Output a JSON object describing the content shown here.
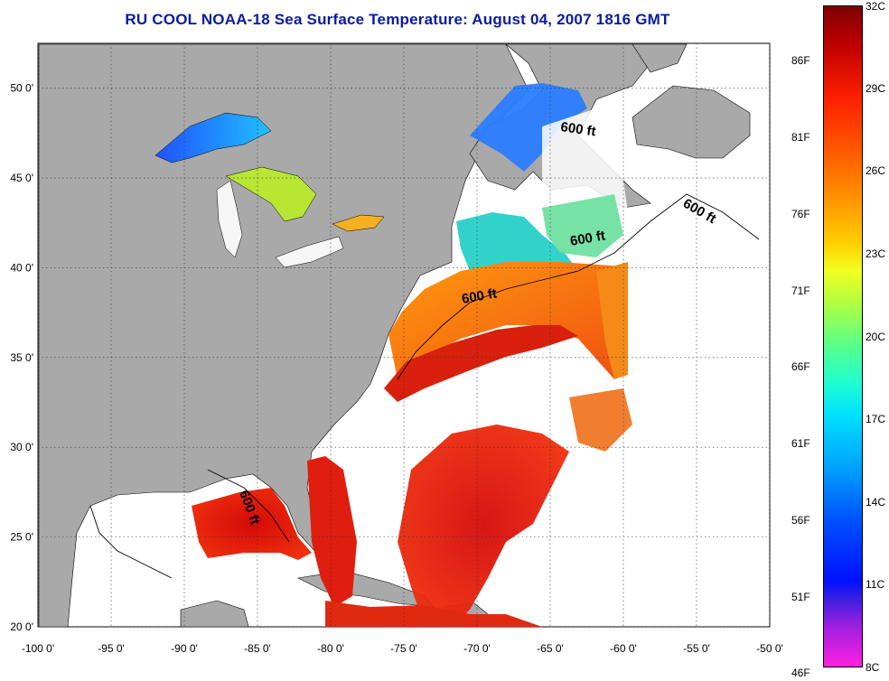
{
  "title": "RU COOL  NOAA-18  Sea Surface Temperature:  August 04, 2007 1816 GMT",
  "map": {
    "lon_ticks": [
      "-100 0'",
      "-95 0'",
      "-90 0'",
      "-85 0'",
      "-80 0'",
      "-75 0'",
      "-70 0'",
      "-65 0'",
      "-60 0'",
      "-55 0'",
      "-50 0'"
    ],
    "lat_ticks": [
      "20 0'",
      "25 0'",
      "30 0'",
      "35 0'",
      "40 0'",
      "45 0'",
      "50 0'"
    ],
    "lon_range": [
      -100,
      -50
    ],
    "lat_range": [
      20,
      52.5
    ],
    "contour_label": "600 ft",
    "colors": {
      "land": "#a9a9a9",
      "ocean_no_data": "#ffffff"
    }
  },
  "colorbar": {
    "celsius": [
      "32C",
      "29C",
      "26C",
      "23C",
      "20C",
      "17C",
      "14C",
      "11C",
      "8C"
    ],
    "fahrenheit": [
      "86F",
      "81F",
      "76F",
      "71F",
      "66F",
      "61F",
      "56F",
      "51F",
      "46F"
    ],
    "range_c": [
      8,
      32
    ]
  }
}
